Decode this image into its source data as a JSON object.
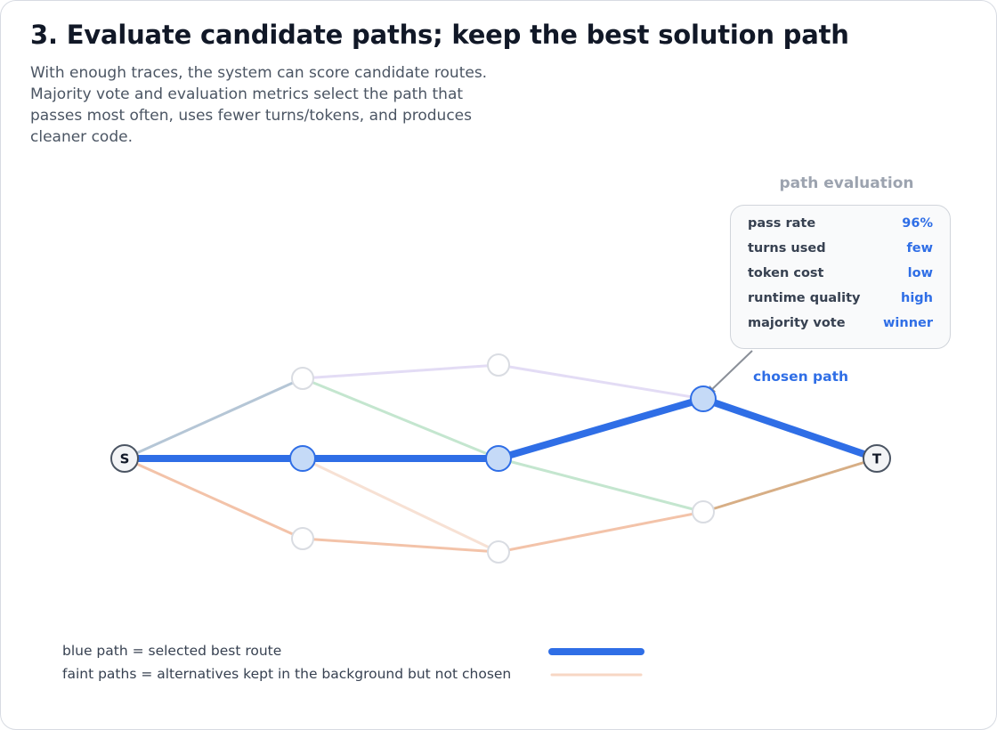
{
  "header": {
    "title": "3. Evaluate candidate paths; keep the best solution path",
    "subtitle": "With enough traces, the system can score candidate routes. Majority vote and evaluation metrics select the path that passes most often, uses fewer turns/tokens, and produces cleaner code."
  },
  "evaluation": {
    "title": "path evaluation",
    "metrics": [
      {
        "label": "pass rate",
        "value": "96%"
      },
      {
        "label": "turns used",
        "value": "few"
      },
      {
        "label": "token cost",
        "value": "low"
      },
      {
        "label": "runtime quality",
        "value": "high"
      },
      {
        "label": "majority vote",
        "value": "winner"
      }
    ]
  },
  "diagram": {
    "start_label": "S",
    "end_label": "T",
    "chosen_label": "chosen path",
    "colors": {
      "chosen": "#2f6ee6",
      "chosen_node_fill": "#c5daf7",
      "alt_blue_gray": "#b5c6d6",
      "alt_purple": "#e3dcf5",
      "alt_green": "#c4e6cf",
      "alt_orange": "#f3c3a9",
      "alt_orange_faint": "#f7e1d4",
      "alt_tan": "#d7ae85"
    }
  },
  "legend": {
    "chosen_text": "blue path = selected best route",
    "faint_text": "faint paths = alternatives kept in the background but not chosen"
  }
}
